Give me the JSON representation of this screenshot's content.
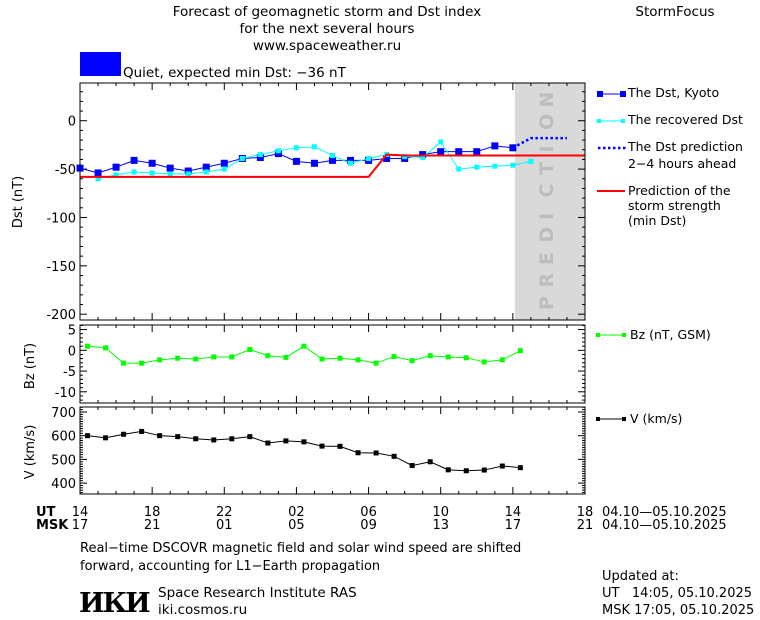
{
  "header": {
    "title_lines": [
      "Forecast of geomagnetic storm and Dst index",
      "for the next several hours",
      "www.spaceweather.ru"
    ],
    "brand": "StormFocus",
    "status_color": "#0000ff",
    "status_text": "Quiet, expected min Dst: −36 nT"
  },
  "prediction_label": "PREDICTION",
  "time_axis": {
    "ut_label": "UT",
    "msk_label": "MSK",
    "ut_ticks": [
      "14",
      "18",
      "22",
      "02",
      "06",
      "10",
      "14",
      "18"
    ],
    "msk_ticks": [
      "17",
      "21",
      "01",
      "05",
      "09",
      "13",
      "17",
      "21"
    ],
    "ut_range": "04.10—05.10.2025",
    "msk_range": "04.10—05.10.2025",
    "start": "2025-10-04T14:00",
    "end": "2025-10-05T18:00"
  },
  "legend": {
    "kyoto": "The Dst, Kyoto",
    "recovered": "The recovered Dst",
    "prediction_1": "The Dst prediction",
    "prediction_2": "2−4 hours ahead",
    "storm_1": "Prediction of the",
    "storm_2": "storm strength",
    "storm_3": "(min Dst)",
    "bz": "Bz (nT, GSM)",
    "v": "V (km/s)"
  },
  "chart_data": [
    {
      "type": "line",
      "ylabel": "Dst (nT)",
      "ylim": [
        -206,
        39
      ],
      "yticks": [
        "0",
        "-50",
        "-100",
        "-150",
        "-200"
      ],
      "ytick_values": [
        0,
        -50,
        -100,
        -150,
        -200
      ],
      "prediction_region_start": "2025-10-05T14:05",
      "series": [
        {
          "name": "The Dst, Kyoto",
          "color": "#0000ff",
          "marker": "square",
          "x": [
            "2025-10-04T14:00",
            "2025-10-04T15:00",
            "2025-10-04T16:00",
            "2025-10-04T17:00",
            "2025-10-04T18:00",
            "2025-10-04T19:00",
            "2025-10-04T20:00",
            "2025-10-04T21:00",
            "2025-10-04T22:00",
            "2025-10-04T23:00",
            "2025-10-05T00:00",
            "2025-10-05T01:00",
            "2025-10-05T02:00",
            "2025-10-05T03:00",
            "2025-10-05T04:00",
            "2025-10-05T05:00",
            "2025-10-05T06:00",
            "2025-10-05T07:00",
            "2025-10-05T08:00",
            "2025-10-05T09:00",
            "2025-10-05T10:00",
            "2025-10-05T11:00",
            "2025-10-05T12:00",
            "2025-10-05T13:00",
            "2025-10-05T14:00"
          ],
          "values": [
            -49,
            -54,
            -48,
            -41,
            -44,
            -49,
            -52,
            -48,
            -44,
            -39,
            -38,
            -34,
            -42,
            -44,
            -41,
            -41,
            -41,
            -39,
            -39,
            -35,
            -32,
            -32,
            -32,
            -26,
            -28
          ]
        },
        {
          "name": "The recovered Dst",
          "color": "#00ffff",
          "marker": "small-square",
          "x": [
            "2025-10-04T15:00",
            "2025-10-04T16:00",
            "2025-10-04T17:00",
            "2025-10-04T18:00",
            "2025-10-04T19:00",
            "2025-10-04T20:00",
            "2025-10-04T21:00",
            "2025-10-04T22:00",
            "2025-10-04T23:00",
            "2025-10-05T00:00",
            "2025-10-05T01:00",
            "2025-10-05T02:00",
            "2025-10-05T03:00",
            "2025-10-05T04:00",
            "2025-10-05T05:00",
            "2025-10-05T06:00",
            "2025-10-05T07:00",
            "2025-10-05T08:00",
            "2025-10-05T09:00",
            "2025-10-05T10:00",
            "2025-10-05T11:00",
            "2025-10-05T12:00",
            "2025-10-05T13:00",
            "2025-10-05T14:00",
            "2025-10-05T15:00"
          ],
          "values": [
            -60,
            -56,
            -53,
            -54,
            -55,
            -55,
            -53,
            -50,
            -39,
            -35,
            -31,
            -28,
            -27,
            -36,
            -44,
            -39,
            -35,
            -37,
            -38,
            -22,
            -50,
            -48,
            -47,
            -46,
            -42
          ]
        },
        {
          "name": "The Dst prediction 2−4 hours ahead",
          "color": "#0000ff",
          "style": "dotted",
          "x": [
            "2025-10-05T14:00",
            "2025-10-05T15:00",
            "2025-10-05T17:00"
          ],
          "values": [
            -28,
            -18,
            -18
          ]
        },
        {
          "name": "Prediction of the storm strength (min Dst)",
          "color": "#ff0000",
          "x": [
            "2025-10-04T14:00",
            "2025-10-05T06:00",
            "2025-10-05T07:00",
            "2025-10-05T08:00",
            "2025-10-05T18:00"
          ],
          "values": [
            -58,
            -58,
            -35,
            -36,
            -36
          ]
        }
      ]
    },
    {
      "type": "line",
      "ylabel": "Bz (nT)",
      "ylim": [
        -12.7,
        6.1
      ],
      "yticks": [
        "5",
        "0",
        "-5",
        "-10"
      ],
      "ytick_values": [
        5,
        0,
        -5,
        -10
      ],
      "series": [
        {
          "name": "Bz (nT, GSM)",
          "color": "#00ff00",
          "x": [
            "2025-10-04T14:25",
            "2025-10-04T15:25",
            "2025-10-04T16:25",
            "2025-10-04T17:25",
            "2025-10-04T18:25",
            "2025-10-04T19:25",
            "2025-10-04T20:25",
            "2025-10-04T21:25",
            "2025-10-04T22:25",
            "2025-10-04T23:25",
            "2025-10-05T00:25",
            "2025-10-05T01:25",
            "2025-10-05T02:25",
            "2025-10-05T03:25",
            "2025-10-05T04:25",
            "2025-10-05T05:25",
            "2025-10-05T06:25",
            "2025-10-05T07:25",
            "2025-10-05T08:25",
            "2025-10-05T09:25",
            "2025-10-05T10:25",
            "2025-10-05T11:25",
            "2025-10-05T12:25",
            "2025-10-05T13:25",
            "2025-10-05T14:25"
          ],
          "values": [
            1.0,
            0.6,
            -3.1,
            -3.1,
            -2.3,
            -1.9,
            -2.1,
            -1.6,
            -1.6,
            0.2,
            -1.3,
            -1.7,
            1.0,
            -2.1,
            -1.9,
            -2.3,
            -3.1,
            -1.5,
            -2.5,
            -1.3,
            -1.6,
            -1.8,
            -2.8,
            -2.3,
            -0.1
          ]
        }
      ]
    },
    {
      "type": "line",
      "ylabel": "V (km/s)",
      "ylim": [
        354,
        721
      ],
      "yticks": [
        "700",
        "600",
        "500",
        "400"
      ],
      "ytick_values": [
        700,
        600,
        500,
        400
      ],
      "series": [
        {
          "name": "V (km/s)",
          "color": "#000000",
          "x": [
            "2025-10-04T14:25",
            "2025-10-04T15:25",
            "2025-10-04T16:25",
            "2025-10-04T17:25",
            "2025-10-04T18:25",
            "2025-10-04T19:25",
            "2025-10-04T20:25",
            "2025-10-04T21:25",
            "2025-10-04T22:25",
            "2025-10-04T23:25",
            "2025-10-05T00:25",
            "2025-10-05T01:25",
            "2025-10-05T02:25",
            "2025-10-05T03:25",
            "2025-10-05T04:25",
            "2025-10-05T05:25",
            "2025-10-05T06:25",
            "2025-10-05T07:25",
            "2025-10-05T08:25",
            "2025-10-05T09:25",
            "2025-10-05T10:25",
            "2025-10-05T11:25",
            "2025-10-05T12:25",
            "2025-10-05T13:25",
            "2025-10-05T14:25"
          ],
          "values": [
            600,
            591,
            606,
            618,
            600,
            596,
            587,
            582,
            587,
            596,
            569,
            578,
            574,
            556,
            555,
            528,
            527,
            513,
            474,
            490,
            456,
            452,
            455,
            472,
            465
          ]
        }
      ]
    }
  ],
  "footer": {
    "note_1": "Real−time DSCOVR magnetic field and solar wind speed are shifted",
    "note_2": "forward, accounting for L1−Earth propagation",
    "logo": "ИКИ",
    "institute": "Space Research Institute RAS",
    "site": "iki.cosmos.ru",
    "updated_label": "Updated at:",
    "updated_ut": "UT   14:05, 05.10.2025",
    "updated_msk": "MSK 17:05, 05.10.2025"
  }
}
